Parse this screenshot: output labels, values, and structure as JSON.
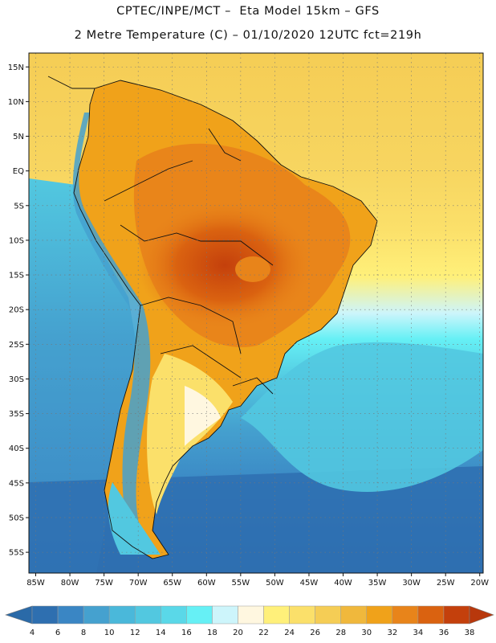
{
  "header": {
    "line1": "CPTEC/INPE/MCT –  Eta Model 15km – GFS",
    "line2": "2 Metre Temperature (C) – 01/10/2020 12UTC fct=219h"
  },
  "map": {
    "lon_range": [
      -86,
      -19.5
    ],
    "lat_range": [
      17,
      -58
    ],
    "lat_ticks": [
      "15N",
      "10N",
      "5N",
      "EQ",
      "5S",
      "10S",
      "15S",
      "20S",
      "25S",
      "30S",
      "35S",
      "40S",
      "45S",
      "50S",
      "55S"
    ],
    "lat_values": [
      15,
      10,
      5,
      0,
      -5,
      -10,
      -15,
      -20,
      -25,
      -30,
      -35,
      -40,
      -45,
      -50,
      -55
    ],
    "lon_ticks": [
      "85W",
      "80W",
      "75W",
      "70W",
      "65W",
      "60W",
      "55W",
      "50W",
      "45W",
      "40W",
      "35W",
      "30W",
      "25W",
      "20W"
    ],
    "lon_values": [
      -85,
      -80,
      -75,
      -70,
      -65,
      -60,
      -55,
      -50,
      -45,
      -40,
      -35,
      -30,
      -25,
      -20
    ],
    "grid": "dotted"
  },
  "colorbar": {
    "labels": [
      "4",
      "6",
      "8",
      "10",
      "12",
      "14",
      "16",
      "18",
      "20",
      "22",
      "24",
      "26",
      "28",
      "30",
      "32",
      "34",
      "36",
      "38"
    ],
    "colors": [
      "#2e6fb0",
      "#3a86c4",
      "#45a1cf",
      "#4ab8da",
      "#52c8e0",
      "#5ad8e8",
      "#66f0f5",
      "#cdf5fb",
      "#fff7e0",
      "#fff07a",
      "#fbe06a",
      "#f5cd55",
      "#f0b83c",
      "#f0a21a",
      "#e8841a",
      "#da6210",
      "#c4400c"
    ],
    "low_color": "#2a6aa8",
    "high_color": "#b8380c"
  }
}
